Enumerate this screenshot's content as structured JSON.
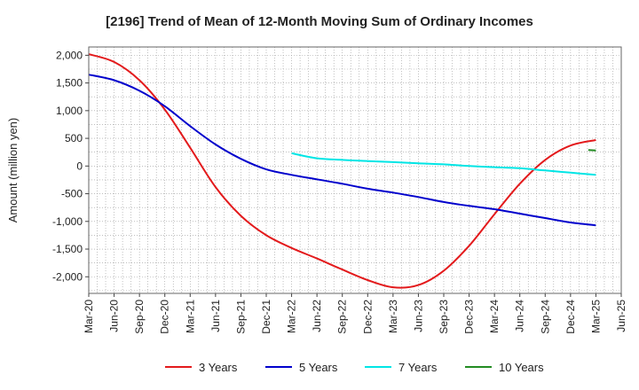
{
  "chart_data": {
    "type": "line",
    "title": "[2196]  Trend of Mean of 12-Month Moving Sum of Ordinary Incomes",
    "xlabel": "",
    "ylabel": "Amount (million yen)",
    "ylim": [
      -2300,
      2150
    ],
    "grid": true,
    "legend_position": "bottom",
    "categories": [
      "Mar-20",
      "Jun-20",
      "Sep-20",
      "Dec-20",
      "Mar-21",
      "Jun-21",
      "Sep-21",
      "Dec-21",
      "Mar-22",
      "Jun-22",
      "Sep-22",
      "Dec-22",
      "Mar-23",
      "Jun-23",
      "Sep-23",
      "Dec-23",
      "Mar-24",
      "Jun-24",
      "Sep-24",
      "Dec-24",
      "Mar-25",
      "Jun-25"
    ],
    "y_ticks": [
      2000,
      1500,
      1000,
      500,
      0,
      -500,
      -1000,
      -1500,
      -2000
    ],
    "y_tick_labels": [
      "2,000",
      "1,500",
      "1,000",
      "500",
      "0",
      "-500",
      "-1,000",
      "-1,500",
      "-2,000"
    ],
    "series": [
      {
        "name": "3 Years",
        "color": "#e31a1c",
        "values": [
          2020,
          1880,
          1550,
          1020,
          330,
          -380,
          -900,
          -1250,
          -1480,
          -1670,
          -1870,
          -2060,
          -2190,
          -2150,
          -1890,
          -1440,
          -870,
          -320,
          110,
          370,
          470,
          null
        ]
      },
      {
        "name": "5 Years",
        "color": "#0000cc",
        "values": [
          1650,
          1550,
          1360,
          1080,
          720,
          390,
          130,
          -60,
          -160,
          -240,
          -320,
          -410,
          -480,
          -560,
          -650,
          -720,
          -780,
          -860,
          -940,
          -1020,
          -1070,
          null
        ]
      },
      {
        "name": "7 Years",
        "color": "#00e5e5",
        "values": [
          null,
          null,
          null,
          null,
          null,
          null,
          null,
          null,
          230,
          140,
          110,
          90,
          70,
          50,
          30,
          0,
          -20,
          -40,
          -80,
          -120,
          -160,
          null
        ]
      },
      {
        "name": "10 Years",
        "color": "#228b22",
        "values": [
          null,
          null,
          null,
          null,
          null,
          null,
          null,
          null,
          null,
          null,
          null,
          null,
          null,
          null,
          null,
          null,
          null,
          null,
          null,
          null,
          290,
          null
        ],
        "segment": [
          [
            19.7,
            290
          ],
          [
            20,
            280
          ]
        ]
      }
    ]
  }
}
